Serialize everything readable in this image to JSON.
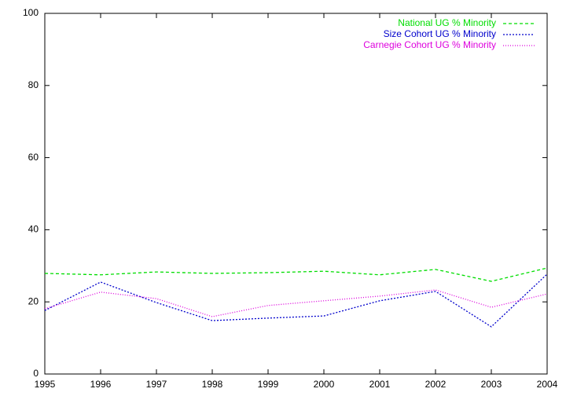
{
  "chart_data": {
    "type": "line",
    "x": [
      1995,
      1996,
      1997,
      1998,
      1999,
      2000,
      2001,
      2002,
      2003,
      2004
    ],
    "series": [
      {
        "name": "National UG % Minority",
        "color": "#00dd00",
        "values": [
          27.9,
          27.5,
          28.3,
          27.9,
          28.1,
          28.5,
          27.5,
          29.0,
          25.7,
          29.4
        ]
      },
      {
        "name": "Size Cohort UG % Minority",
        "color": "#0000cc",
        "values": [
          17.6,
          25.5,
          19.8,
          14.8,
          15.5,
          16.1,
          20.3,
          22.9,
          13.1,
          27.7
        ]
      },
      {
        "name": "Carnegie Cohort UG % Minority",
        "color": "#dd00dd",
        "values": [
          18.1,
          22.7,
          20.9,
          15.9,
          19.0,
          20.3,
          21.6,
          23.3,
          18.5,
          22.2
        ]
      }
    ],
    "xlim": [
      1995,
      2004
    ],
    "xticks": [
      1995,
      1996,
      1997,
      1998,
      1999,
      2000,
      2001,
      2002,
      2003,
      2004
    ],
    "ylim": [
      0,
      100
    ],
    "yticks": [
      0,
      20,
      40,
      60,
      80,
      100
    ],
    "legend": "top-right"
  }
}
